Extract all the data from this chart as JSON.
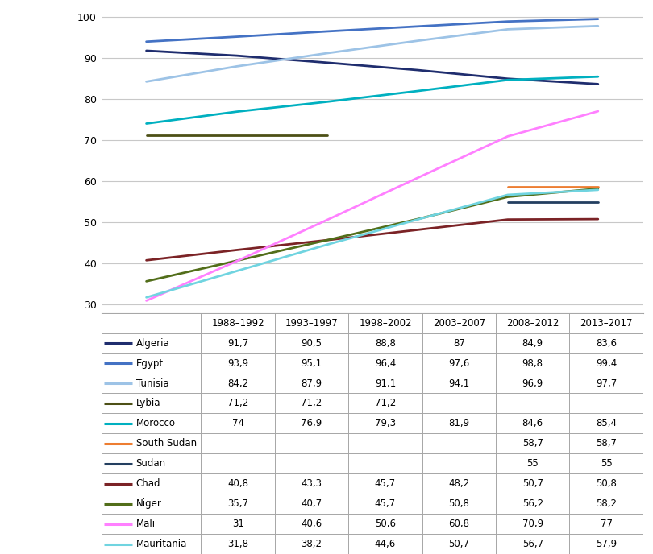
{
  "x_labels": [
    "1988–1992",
    "1993–1997",
    "1998–2002",
    "2003–2007",
    "2008–2012",
    "2013–2017"
  ],
  "x_positions": [
    0,
    1,
    2,
    3,
    4,
    5
  ],
  "series": [
    {
      "name": "Algeria",
      "color": "#1F2D6E",
      "linewidth": 2.0,
      "data": [
        [
          0,
          91.7
        ],
        [
          1,
          90.5
        ],
        [
          2,
          88.8
        ],
        [
          3,
          87.0
        ],
        [
          4,
          84.9
        ],
        [
          5,
          83.6
        ]
      ]
    },
    {
      "name": "Egypt",
      "color": "#4472C4",
      "linewidth": 2.0,
      "data": [
        [
          0,
          93.9
        ],
        [
          1,
          95.1
        ],
        [
          2,
          96.4
        ],
        [
          3,
          97.6
        ],
        [
          4,
          98.8
        ],
        [
          5,
          99.4
        ]
      ]
    },
    {
      "name": "Tunisia",
      "color": "#9DC3E6",
      "linewidth": 2.0,
      "data": [
        [
          0,
          84.2
        ],
        [
          1,
          87.9
        ],
        [
          2,
          91.1
        ],
        [
          3,
          94.1
        ],
        [
          4,
          96.9
        ],
        [
          5,
          97.7
        ]
      ]
    },
    {
      "name": "Lybia",
      "color": "#4D5016",
      "linewidth": 2.0,
      "data": [
        [
          0,
          71.2
        ],
        [
          1,
          71.2
        ],
        [
          2,
          71.2
        ]
      ]
    },
    {
      "name": "Morocco",
      "color": "#00B0C0",
      "linewidth": 2.0,
      "data": [
        [
          0,
          74.0
        ],
        [
          1,
          76.9
        ],
        [
          2,
          79.3
        ],
        [
          3,
          81.9
        ],
        [
          4,
          84.6
        ],
        [
          5,
          85.4
        ]
      ]
    },
    {
      "name": "South Sudan",
      "color": "#ED7D31",
      "linewidth": 2.0,
      "data": [
        [
          4,
          58.7
        ],
        [
          5,
          58.7
        ]
      ]
    },
    {
      "name": "Sudan",
      "color": "#243F60",
      "linewidth": 2.0,
      "data": [
        [
          4,
          55.0
        ],
        [
          5,
          55.0
        ]
      ]
    },
    {
      "name": "Chad",
      "color": "#7B2326",
      "linewidth": 2.0,
      "data": [
        [
          0,
          40.8
        ],
        [
          1,
          43.3
        ],
        [
          2,
          45.7
        ],
        [
          3,
          48.2
        ],
        [
          4,
          50.7
        ],
        [
          5,
          50.8
        ]
      ]
    },
    {
      "name": "Niger",
      "color": "#526E1A",
      "linewidth": 2.0,
      "data": [
        [
          0,
          35.7
        ],
        [
          1,
          40.7
        ],
        [
          2,
          45.7
        ],
        [
          3,
          50.8
        ],
        [
          4,
          56.2
        ],
        [
          5,
          58.2
        ]
      ]
    },
    {
      "name": "Mali",
      "color": "#FF80FF",
      "linewidth": 2.0,
      "data": [
        [
          0,
          31.0
        ],
        [
          1,
          40.6
        ],
        [
          2,
          50.6
        ],
        [
          3,
          60.8
        ],
        [
          4,
          70.9
        ],
        [
          5,
          77.0
        ]
      ]
    },
    {
      "name": "Mauritania",
      "color": "#70D4E0",
      "linewidth": 2.0,
      "data": [
        [
          0,
          31.8
        ],
        [
          1,
          38.2
        ],
        [
          2,
          44.6
        ],
        [
          3,
          50.7
        ],
        [
          4,
          56.7
        ],
        [
          5,
          57.9
        ]
      ]
    }
  ],
  "series_names": [
    "Algeria",
    "Egypt",
    "Tunisia",
    "Lybia",
    "Morocco",
    "South Sudan",
    "Sudan",
    "Chad",
    "Niger",
    "Mali",
    "Mauritania"
  ],
  "table_data": {
    "Algeria": [
      "91,7",
      "90,5",
      "88,8",
      "87",
      "84,9",
      "83,6"
    ],
    "Egypt": [
      "93,9",
      "95,1",
      "96,4",
      "97,6",
      "98,8",
      "99,4"
    ],
    "Tunisia": [
      "84,2",
      "87,9",
      "91,1",
      "94,1",
      "96,9",
      "97,7"
    ],
    "Lybia": [
      "71,2",
      "71,2",
      "71,2",
      "",
      "",
      ""
    ],
    "Morocco": [
      "74",
      "76,9",
      "79,3",
      "81,9",
      "84,6",
      "85,4"
    ],
    "South Sudan": [
      "",
      "",
      "",
      "",
      "58,7",
      "58,7"
    ],
    "Sudan": [
      "",
      "",
      "",
      "",
      "55",
      "55"
    ],
    "Chad": [
      "40,8",
      "43,3",
      "45,7",
      "48,2",
      "50,7",
      "50,8"
    ],
    "Niger": [
      "35,7",
      "40,7",
      "45,7",
      "50,8",
      "56,2",
      "58,2"
    ],
    "Mali": [
      "31",
      "40,6",
      "50,6",
      "60,8",
      "70,9",
      "77"
    ],
    "Mauritania": [
      "31,8",
      "38,2",
      "44,6",
      "50,7",
      "56,7",
      "57,9"
    ]
  },
  "ylim": [
    28,
    102
  ],
  "yticks": [
    30,
    40,
    50,
    60,
    70,
    80,
    90,
    100
  ],
  "background_color": "#FFFFFF",
  "grid_color": "#C8C8C8",
  "border_color": "#A0A0A0"
}
